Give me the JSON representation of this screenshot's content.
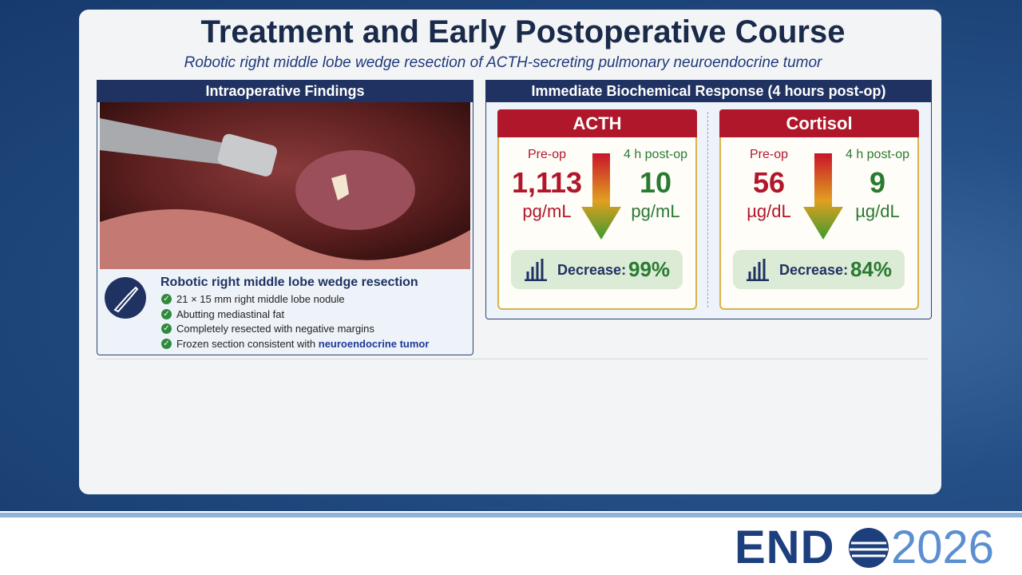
{
  "header": {
    "title": "Treatment and Early Postoperative Course",
    "subtitle": "Robotic right middle lobe wedge resection of ACTH-secreting pulmonary neuroendocrine tumor"
  },
  "left_panel": {
    "title": "Intraoperative Findings",
    "caption_title": "Robotic right middle lobe wedge resection",
    "bullets": [
      {
        "text": "21 × 15 mm right middle lobe nodule"
      },
      {
        "text": "Abutting mediastinal fat"
      },
      {
        "text": "Completely resected with negative margins"
      },
      {
        "text": "Frozen section consistent with ",
        "highlight": "neuroendocrine tumor"
      }
    ]
  },
  "right_panel": {
    "title": "Immediate Biochemical Response (4 hours post-op)",
    "cards": [
      {
        "name": "ACTH",
        "pre_label": "Pre-op",
        "pre_value": "1,113",
        "pre_unit": "pg/mL",
        "post_label": "4 h post-op",
        "post_value": "10",
        "post_unit": "pg/mL",
        "decrease_label": "Decrease:",
        "decrease_value": "99%"
      },
      {
        "name": "Cortisol",
        "pre_label": "Pre-op",
        "pre_value": "56",
        "pre_unit": "µg/dL",
        "post_label": "4 h post-op",
        "post_value": "9",
        "post_unit": "µg/dL",
        "decrease_label": "Decrease:",
        "decrease_value": "84%"
      }
    ]
  },
  "logo": {
    "brand": "END",
    "year": "2026"
  }
}
